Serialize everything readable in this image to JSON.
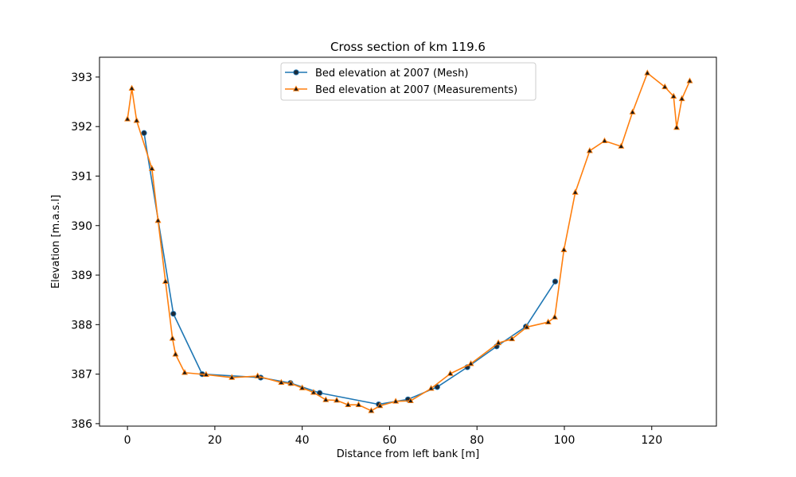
{
  "chart_data": {
    "type": "line",
    "title": "Cross section of km 119.6",
    "xlabel": "Distance from left bank [m]",
    "ylabel": "Elevation [m.a.s.l]",
    "xlim": [
      -6.4,
      134.8
    ],
    "ylim": [
      385.95,
      393.4
    ],
    "xticks": [
      0,
      20,
      40,
      60,
      80,
      100,
      120
    ],
    "yticks": [
      386,
      387,
      388,
      389,
      390,
      391,
      392,
      393
    ],
    "grid": false,
    "legend_position": "upper center",
    "series": [
      {
        "name": "Bed elevation at 2007 (Mesh)",
        "color": "#1f77b4",
        "marker": "circle",
        "marker_color": "#1c2b3a",
        "x": [
          3.8,
          10.5,
          17.1,
          30.5,
          37.3,
          44.0,
          57.5,
          64.2,
          70.9,
          77.8,
          84.5,
          91.2,
          97.9
        ],
        "y": [
          391.87,
          388.22,
          387.0,
          386.93,
          386.82,
          386.62,
          386.39,
          386.49,
          386.74,
          387.14,
          387.56,
          387.96,
          388.87
        ]
      },
      {
        "name": "Bed elevation at 2007 (Measurements)",
        "color": "#ff7f0e",
        "marker": "triangle",
        "marker_color": "#1a1a1a",
        "x": [
          0.0,
          1.0,
          2.1,
          5.6,
          7.0,
          8.7,
          10.3,
          11.0,
          13.1,
          18.0,
          23.9,
          29.8,
          35.2,
          37.4,
          40.0,
          42.6,
          45.4,
          47.9,
          50.5,
          52.9,
          55.8,
          57.8,
          61.4,
          64.8,
          69.5,
          73.9,
          78.6,
          84.9,
          88.0,
          91.4,
          96.3,
          97.8,
          99.9,
          102.5,
          105.8,
          109.2,
          113.0,
          115.6,
          119.0,
          123.0,
          125.0,
          125.7,
          126.9,
          128.7
        ],
        "y": [
          392.15,
          392.77,
          392.12,
          391.15,
          390.1,
          388.87,
          387.72,
          387.4,
          387.03,
          386.99,
          386.93,
          386.96,
          386.83,
          386.81,
          386.72,
          386.63,
          386.48,
          386.47,
          386.38,
          386.38,
          386.26,
          386.36,
          386.45,
          386.46,
          386.71,
          387.01,
          387.21,
          387.63,
          387.71,
          387.95,
          388.05,
          388.15,
          389.51,
          390.67,
          391.51,
          391.71,
          391.6,
          392.29,
          393.08,
          392.8,
          392.61,
          391.98,
          392.56,
          392.92
        ]
      }
    ]
  }
}
